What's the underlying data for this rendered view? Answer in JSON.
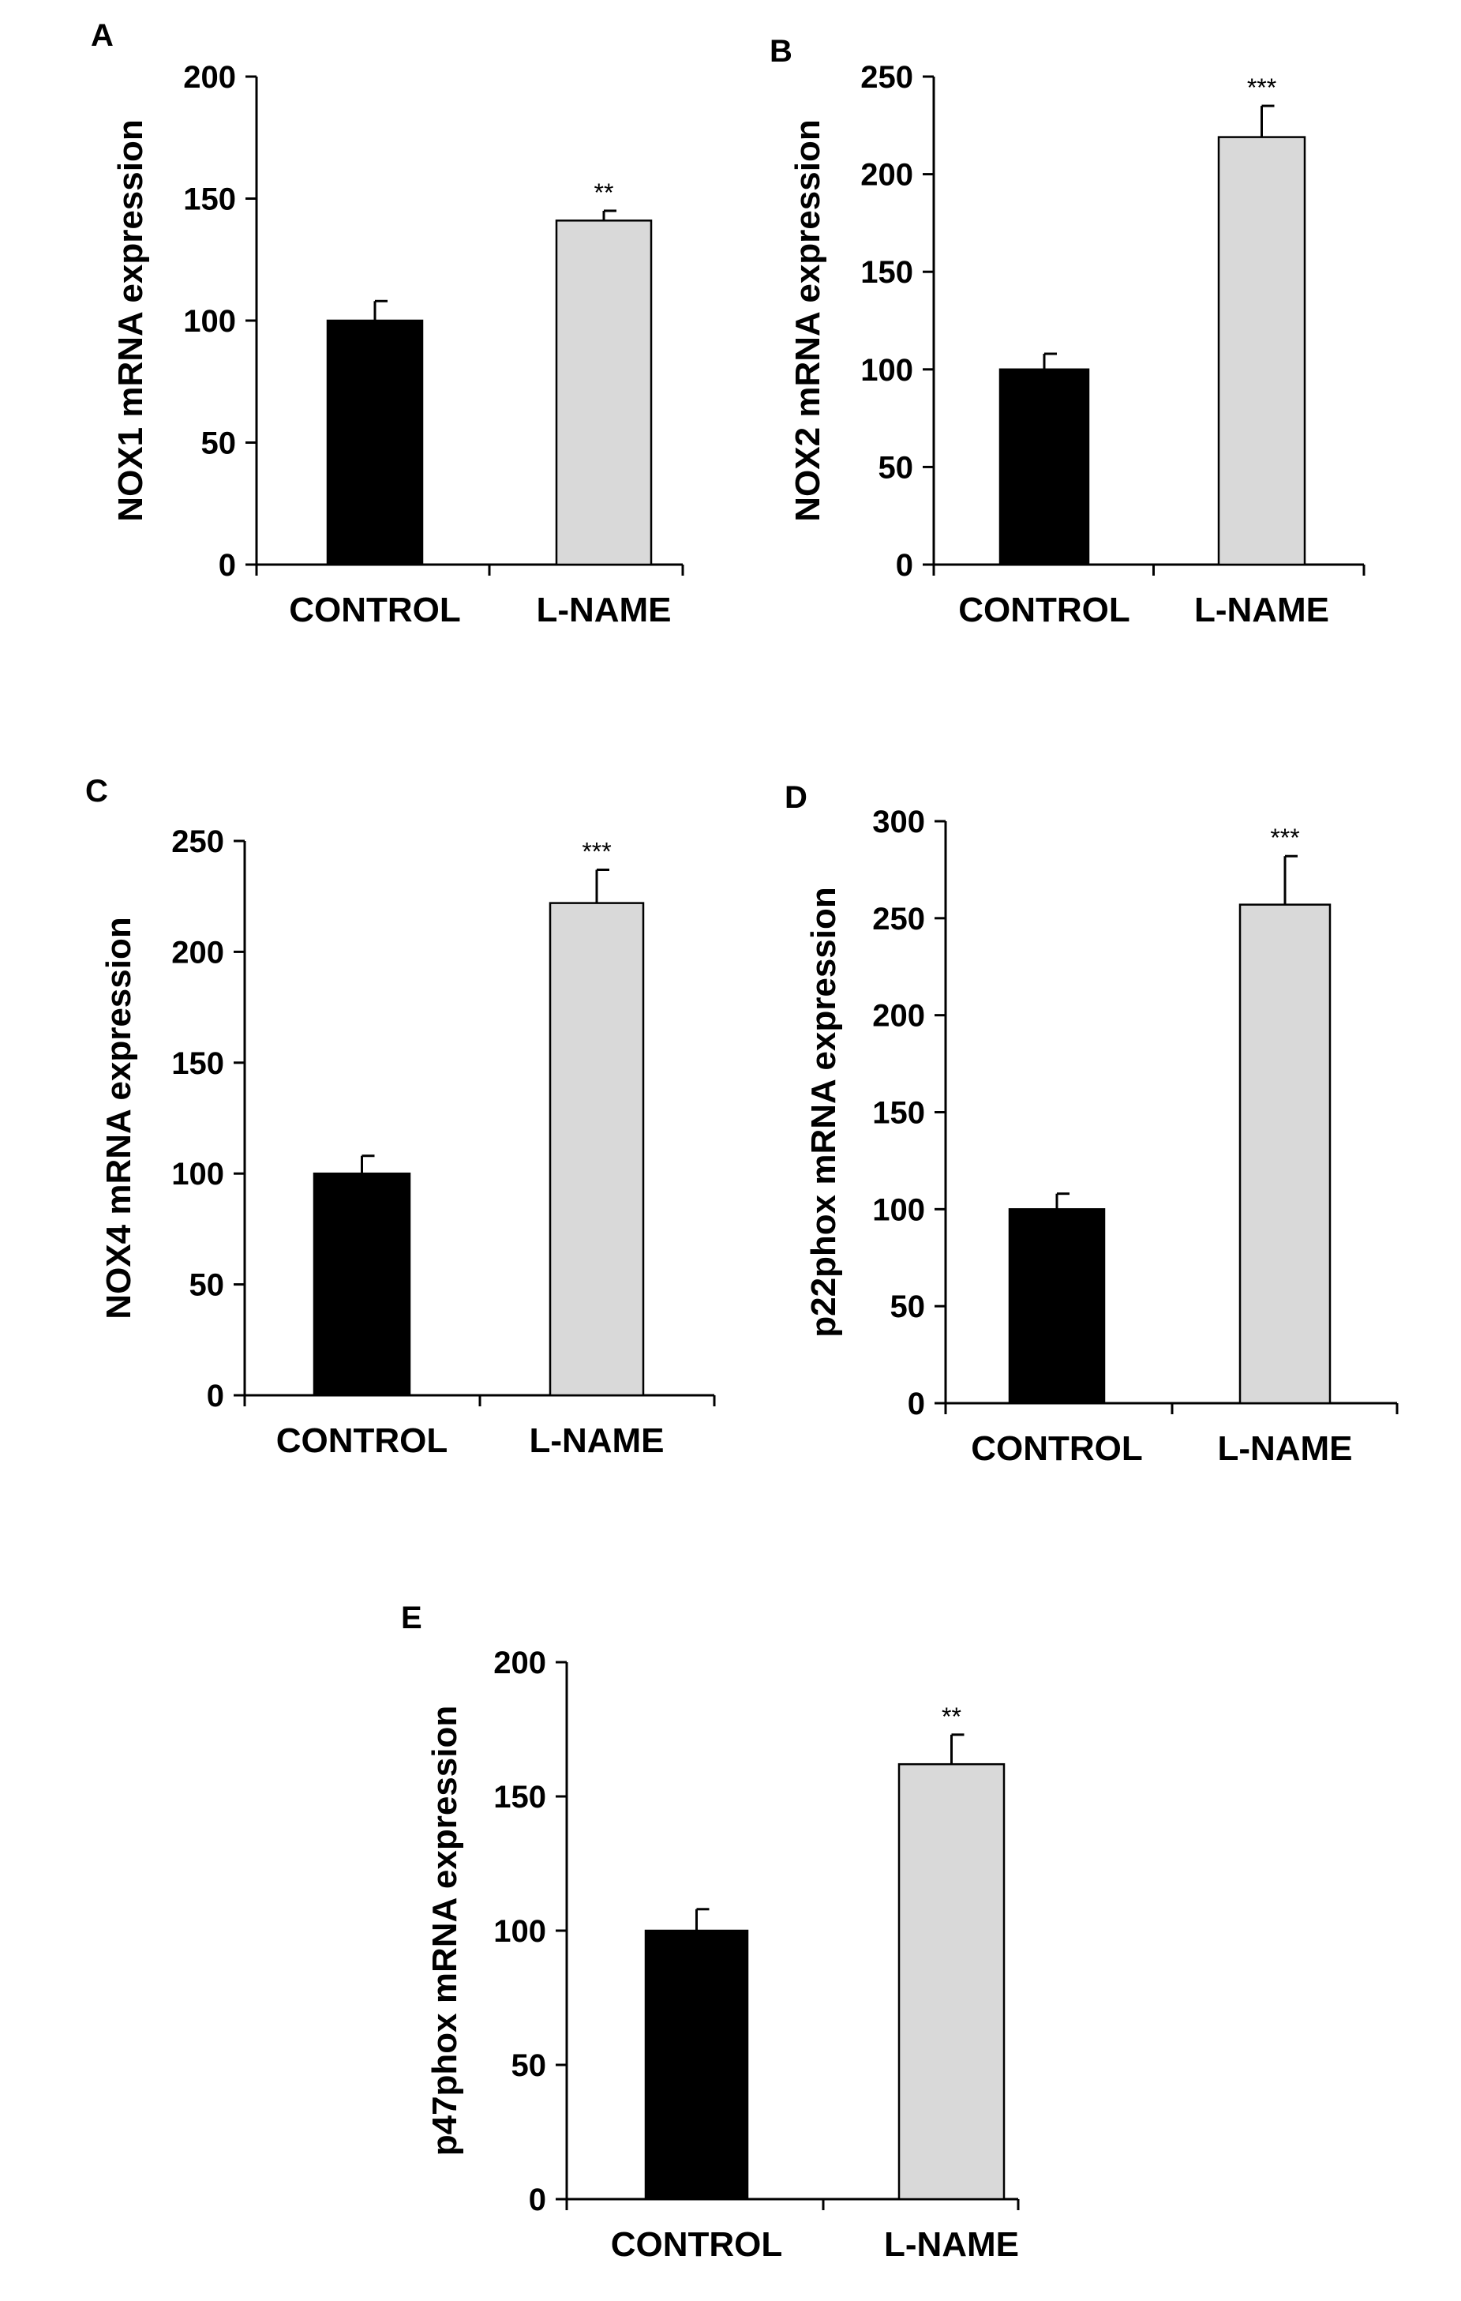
{
  "chart_data": [
    {
      "panel": "A",
      "type": "bar",
      "categories": [
        "CONTROL",
        "L-NAME"
      ],
      "values": [
        100,
        141
      ],
      "errors": [
        8,
        4
      ],
      "significance": [
        "",
        "**"
      ],
      "bar_colors": [
        "#000000",
        "#d9d9d9"
      ],
      "ylabel": "NOX1 mRNA expression",
      "xlabel": "",
      "ylim": [
        0,
        200
      ],
      "yticks": [
        0,
        50,
        100,
        150,
        200
      ]
    },
    {
      "panel": "B",
      "type": "bar",
      "categories": [
        "CONTROL",
        "L-NAME"
      ],
      "values": [
        100,
        219
      ],
      "errors": [
        8,
        16
      ],
      "significance": [
        "",
        "***"
      ],
      "bar_colors": [
        "#000000",
        "#d9d9d9"
      ],
      "ylabel": "NOX2 mRNA expression",
      "xlabel": "",
      "ylim": [
        0,
        250
      ],
      "yticks": [
        0,
        50,
        100,
        150,
        200,
        250
      ]
    },
    {
      "panel": "C",
      "type": "bar",
      "categories": [
        "CONTROL",
        "L-NAME"
      ],
      "values": [
        100,
        222
      ],
      "errors": [
        8,
        15
      ],
      "significance": [
        "",
        "***"
      ],
      "bar_colors": [
        "#000000",
        "#d9d9d9"
      ],
      "ylabel": "NOX4 mRNA expression",
      "xlabel": "",
      "ylim": [
        0,
        250
      ],
      "yticks": [
        0,
        50,
        100,
        150,
        200,
        250
      ]
    },
    {
      "panel": "D",
      "type": "bar",
      "categories": [
        "CONTROL",
        "L-NAME"
      ],
      "values": [
        100,
        257
      ],
      "errors": [
        8,
        25
      ],
      "significance": [
        "",
        "***"
      ],
      "bar_colors": [
        "#000000",
        "#d9d9d9"
      ],
      "ylabel": "p22phox mRNA expression",
      "xlabel": "",
      "ylim": [
        0,
        300
      ],
      "yticks": [
        0,
        50,
        100,
        150,
        200,
        250,
        300
      ]
    },
    {
      "panel": "E",
      "type": "bar",
      "categories": [
        "CONTROL",
        "L-NAME"
      ],
      "values": [
        100,
        162
      ],
      "errors": [
        8,
        11
      ],
      "significance": [
        "",
        "**"
      ],
      "bar_colors": [
        "#000000",
        "#d9d9d9"
      ],
      "ylabel": "p47phox  mRNA expression",
      "xlabel": "",
      "ylim": [
        0,
        200
      ],
      "yticks": [
        0,
        50,
        100,
        150,
        200
      ]
    }
  ]
}
